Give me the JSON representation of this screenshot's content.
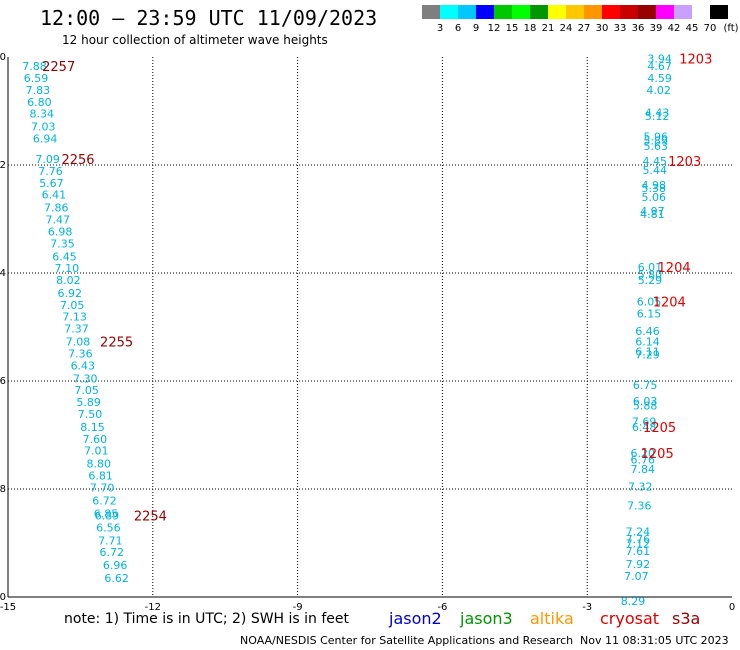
{
  "title": "12:00 — 23:59 UTC 11/09/2023",
  "subtitle": "12 hour collection of altimeter wave heights",
  "scale": {
    "unit": "(ft)",
    "labels": [
      "3",
      "6",
      "9",
      "12",
      "15",
      "18",
      "21",
      "24",
      "27",
      "30",
      "33",
      "36",
      "39",
      "42",
      "45",
      "70"
    ],
    "colors": [
      "#7f7f7f",
      "#00ffff",
      "#00c8ff",
      "#0000ff",
      "#00c800",
      "#00ff00",
      "#009600",
      "#ffff00",
      "#ffc800",
      "#ff9600",
      "#ff0000",
      "#c80000",
      "#960000",
      "#ff00ff",
      "#c8a0ff",
      "#ffffff",
      "#000000"
    ]
  },
  "note": "note:  1) Time is in UTC; 2) SWH is in feet",
  "missions": [
    {
      "name": "jason2",
      "color": "#0000c8"
    },
    {
      "name": "jason3",
      "color": "#009600"
    },
    {
      "name": "altika",
      "color": "#ff9600"
    },
    {
      "name": "cryosat",
      "color": "#e00000"
    },
    {
      "name": "s3a",
      "color": "#960000"
    }
  ],
  "credit": "NOAA/NESDIS Center for Satellite Applications and Research",
  "timestamp": "Nov 11 08:31:05 UTC 2023",
  "chart_data": {
    "type": "scatter",
    "title": "12:00 — 23:59 UTC 11/09/2023",
    "xlim": [
      -15,
      0
    ],
    "ylim": [
      -10,
      0
    ],
    "x_ticks": [
      "-15",
      "-12",
      "-9",
      "-6",
      "-3",
      "0"
    ],
    "y_ticks": [
      "0",
      "-2",
      "-4",
      "-6",
      "-8",
      "-10"
    ],
    "grid": true,
    "point_color": "#00b4dc",
    "series": [
      {
        "name": "track-west",
        "points": [
          {
            "x": -14.45,
            "y": -0.17,
            "v": "7.88"
          },
          {
            "x": -14.42,
            "y": -0.39,
            "v": "6.59"
          },
          {
            "x": -14.38,
            "y": -0.61,
            "v": "7.83"
          },
          {
            "x": -14.35,
            "y": -0.83,
            "v": "6.80"
          },
          {
            "x": -14.3,
            "y": -1.05,
            "v": "8.34"
          },
          {
            "x": -14.27,
            "y": -1.29,
            "v": "7.03"
          },
          {
            "x": -14.23,
            "y": -1.51,
            "v": "6.94"
          },
          {
            "x": -14.18,
            "y": -1.89,
            "v": "7.09"
          },
          {
            "x": -14.12,
            "y": -2.11,
            "v": "7.76"
          },
          {
            "x": -14.1,
            "y": -2.33,
            "v": "5.67"
          },
          {
            "x": -14.05,
            "y": -2.55,
            "v": "6.41"
          },
          {
            "x": -14.0,
            "y": -2.79,
            "v": "7.86"
          },
          {
            "x": -13.97,
            "y": -3.01,
            "v": "7.47"
          },
          {
            "x": -13.92,
            "y": -3.23,
            "v": "6.98"
          },
          {
            "x": -13.87,
            "y": -3.45,
            "v": "7.35"
          },
          {
            "x": -13.83,
            "y": -3.69,
            "v": "6.45"
          },
          {
            "x": -13.78,
            "y": -3.91,
            "v": "7.10"
          },
          {
            "x": -13.75,
            "y": -4.13,
            "v": "8.02"
          },
          {
            "x": -13.72,
            "y": -4.37,
            "v": "6.92"
          },
          {
            "x": -13.67,
            "y": -4.59,
            "v": "7.05"
          },
          {
            "x": -13.62,
            "y": -4.81,
            "v": "7.13"
          },
          {
            "x": -13.58,
            "y": -5.03,
            "v": "7.37"
          },
          {
            "x": -13.55,
            "y": -5.27,
            "v": "7.08"
          },
          {
            "x": -13.5,
            "y": -5.49,
            "v": "7.36"
          },
          {
            "x": -13.45,
            "y": -5.71,
            "v": "6.43"
          },
          {
            "x": -13.4,
            "y": -5.95,
            "v": "7.30"
          },
          {
            "x": -13.37,
            "y": -6.17,
            "v": "7.05"
          },
          {
            "x": -13.33,
            "y": -6.39,
            "v": "5.89"
          },
          {
            "x": -13.3,
            "y": -6.61,
            "v": "7.50"
          },
          {
            "x": -13.25,
            "y": -6.85,
            "v": "8.15"
          },
          {
            "x": -13.2,
            "y": -7.07,
            "v": "7.60"
          },
          {
            "x": -13.17,
            "y": -7.29,
            "v": "7.01"
          },
          {
            "x": -13.12,
            "y": -7.53,
            "v": "8.80"
          },
          {
            "x": -13.08,
            "y": -7.75,
            "v": "6.81"
          },
          {
            "x": -13.05,
            "y": -7.97,
            "v": "7.70"
          },
          {
            "x": -13.0,
            "y": -8.21,
            "v": "6.72"
          },
          {
            "x": -12.97,
            "y": -8.45,
            "v": "6.85"
          },
          {
            "x": -12.95,
            "y": -8.49,
            "v": "6.89"
          },
          {
            "x": -12.92,
            "y": -8.71,
            "v": "6.56"
          },
          {
            "x": -12.88,
            "y": -8.95,
            "v": "7.71"
          },
          {
            "x": -12.85,
            "y": -9.17,
            "v": "6.72"
          },
          {
            "x": -12.78,
            "y": -9.41,
            "v": "6.96"
          },
          {
            "x": -12.75,
            "y": -9.65,
            "v": "6.62"
          }
        ]
      },
      {
        "name": "track-east",
        "points": [
          {
            "x": -1.5,
            "y": -0.03,
            "v": "3.94"
          },
          {
            "x": -1.5,
            "y": -0.17,
            "v": "4.67"
          },
          {
            "x": -1.5,
            "y": -0.39,
            "v": "4.59"
          },
          {
            "x": -1.52,
            "y": -0.61,
            "v": "4.02"
          },
          {
            "x": -1.55,
            "y": -1.03,
            "v": "4.43"
          },
          {
            "x": -1.55,
            "y": -1.09,
            "v": "5.12"
          },
          {
            "x": -1.58,
            "y": -1.47,
            "v": "5.96"
          },
          {
            "x": -1.58,
            "y": -1.55,
            "v": "5.89"
          },
          {
            "x": -1.58,
            "y": -1.65,
            "v": "5.63"
          },
          {
            "x": -1.6,
            "y": -1.93,
            "v": "4.45"
          },
          {
            "x": -1.6,
            "y": -2.09,
            "v": "5.44"
          },
          {
            "x": -1.62,
            "y": -2.37,
            "v": "4.98"
          },
          {
            "x": -1.62,
            "y": -2.43,
            "v": "5.38"
          },
          {
            "x": -1.62,
            "y": -2.59,
            "v": "5.06"
          },
          {
            "x": -1.65,
            "y": -2.85,
            "v": "4.97"
          },
          {
            "x": -1.65,
            "y": -2.91,
            "v": "4.81"
          },
          {
            "x": -1.7,
            "y": -3.89,
            "v": "6.01"
          },
          {
            "x": -1.7,
            "y": -4.03,
            "v": "5.80"
          },
          {
            "x": -1.7,
            "y": -4.13,
            "v": "5.29"
          },
          {
            "x": -1.72,
            "y": -4.53,
            "v": "6.05"
          },
          {
            "x": -1.72,
            "y": -4.75,
            "v": "6.15"
          },
          {
            "x": -1.75,
            "y": -5.07,
            "v": "6.46"
          },
          {
            "x": -1.75,
            "y": -5.27,
            "v": "6.14"
          },
          {
            "x": -1.75,
            "y": -5.45,
            "v": "6.11"
          },
          {
            "x": -1.75,
            "y": -5.51,
            "v": "7.29"
          },
          {
            "x": -1.8,
            "y": -6.07,
            "v": "6.75"
          },
          {
            "x": -1.8,
            "y": -6.37,
            "v": "6.03"
          },
          {
            "x": -1.8,
            "y": -6.45,
            "v": "5.88"
          },
          {
            "x": -1.82,
            "y": -6.75,
            "v": "7.69"
          },
          {
            "x": -1.82,
            "y": -6.85,
            "v": "6.48"
          },
          {
            "x": -1.85,
            "y": -7.33,
            "v": "6.20"
          },
          {
            "x": -1.85,
            "y": -7.45,
            "v": "6.76"
          },
          {
            "x": -1.85,
            "y": -7.63,
            "v": "7.84"
          },
          {
            "x": -1.9,
            "y": -7.95,
            "v": "7.32"
          },
          {
            "x": -1.92,
            "y": -8.31,
            "v": "7.36"
          },
          {
            "x": -1.95,
            "y": -8.79,
            "v": "7.24"
          },
          {
            "x": -1.95,
            "y": -8.93,
            "v": "7.76"
          },
          {
            "x": -1.95,
            "y": -9.01,
            "v": "7.12"
          },
          {
            "x": -1.95,
            "y": -9.15,
            "v": "7.61"
          },
          {
            "x": -1.95,
            "y": -9.39,
            "v": "7.92"
          },
          {
            "x": -1.98,
            "y": -9.61,
            "v": "7.07"
          },
          {
            "x": -2.05,
            "y": -10.07,
            "v": "8.29"
          }
        ]
      }
    ],
    "time_labels": [
      {
        "x": -13.95,
        "y": -0.17,
        "text": "2257",
        "color": "#960000"
      },
      {
        "x": -13.55,
        "y": -1.89,
        "text": "2256",
        "color": "#960000"
      },
      {
        "x": -12.75,
        "y": -5.27,
        "text": "2255",
        "color": "#960000"
      },
      {
        "x": -12.05,
        "y": -8.49,
        "text": "2254",
        "color": "#960000"
      },
      {
        "x": -0.75,
        "y": -0.03,
        "text": "1203",
        "color": "#e00000"
      },
      {
        "x": -0.98,
        "y": -1.93,
        "text": "1203",
        "color": "#e00000"
      },
      {
        "x": -1.2,
        "y": -3.89,
        "text": "1204",
        "color": "#e00000"
      },
      {
        "x": -1.3,
        "y": -4.53,
        "text": "1204",
        "color": "#e00000"
      },
      {
        "x": -1.5,
        "y": -6.85,
        "text": "1205",
        "color": "#e00000"
      },
      {
        "x": -1.55,
        "y": -7.33,
        "text": "1205",
        "color": "#e00000"
      }
    ]
  }
}
